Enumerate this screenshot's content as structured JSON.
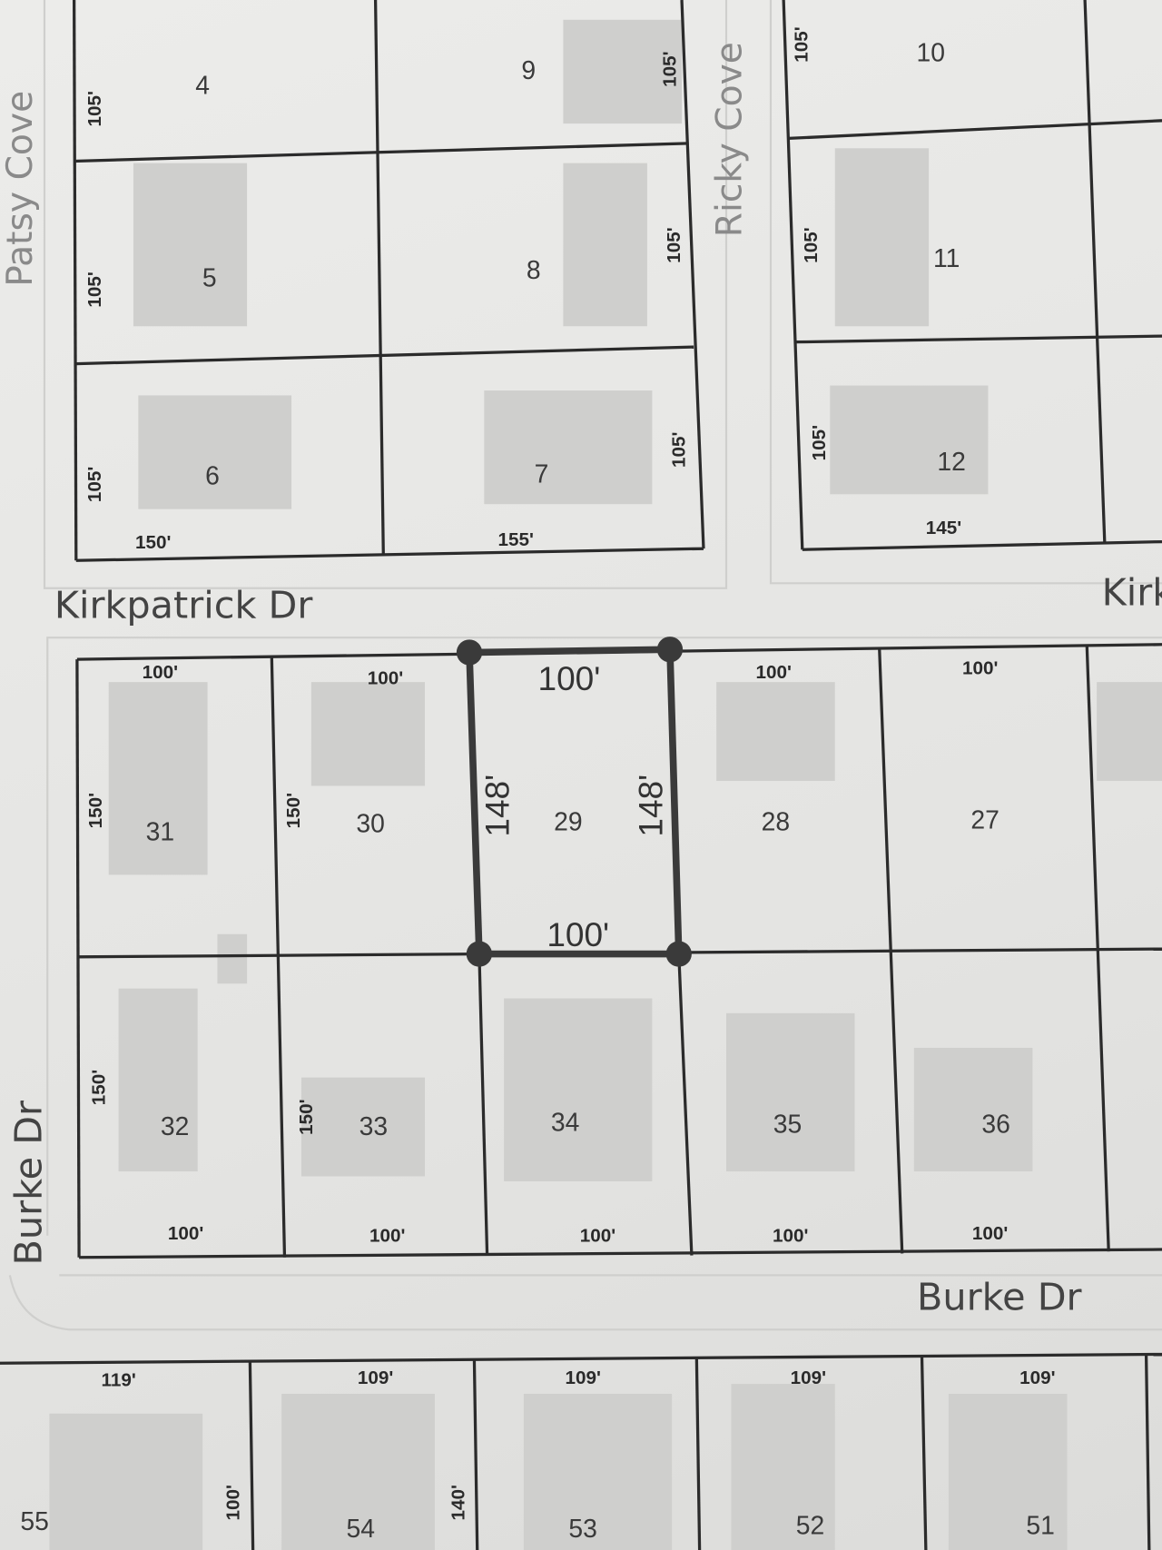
{
  "streets": {
    "patsy_cove": "Patsy Cove",
    "ricky_cove": "Ricky Cove",
    "kirkpatrick_dr": "Kirkpatrick Dr",
    "kirkpatrick_dr_partial": "Kirk",
    "burke_dr_side": "Burke Dr",
    "burke_dr": "Burke Dr"
  },
  "lots": {
    "l4": "4",
    "l5": "5",
    "l6": "6",
    "l7": "7",
    "l8": "8",
    "l9": "9",
    "l10": "10",
    "l11": "11",
    "l12": "12",
    "l27": "27",
    "l28": "28",
    "l29": "29",
    "l30": "30",
    "l31": "31",
    "l32": "32",
    "l33": "33",
    "l34": "34",
    "l35": "35",
    "l36": "36",
    "l51": "51",
    "l52": "52",
    "l53": "53",
    "l54": "54",
    "l55": "55"
  },
  "dims": {
    "d105": "105'",
    "d150": "150'",
    "d155": "155'",
    "d145": "145'",
    "d100": "100'",
    "d148": "148'",
    "d119": "119'",
    "d109": "109'",
    "d140": "140'"
  },
  "highlight": {
    "lot": "29",
    "color": "#3a3a3a"
  }
}
